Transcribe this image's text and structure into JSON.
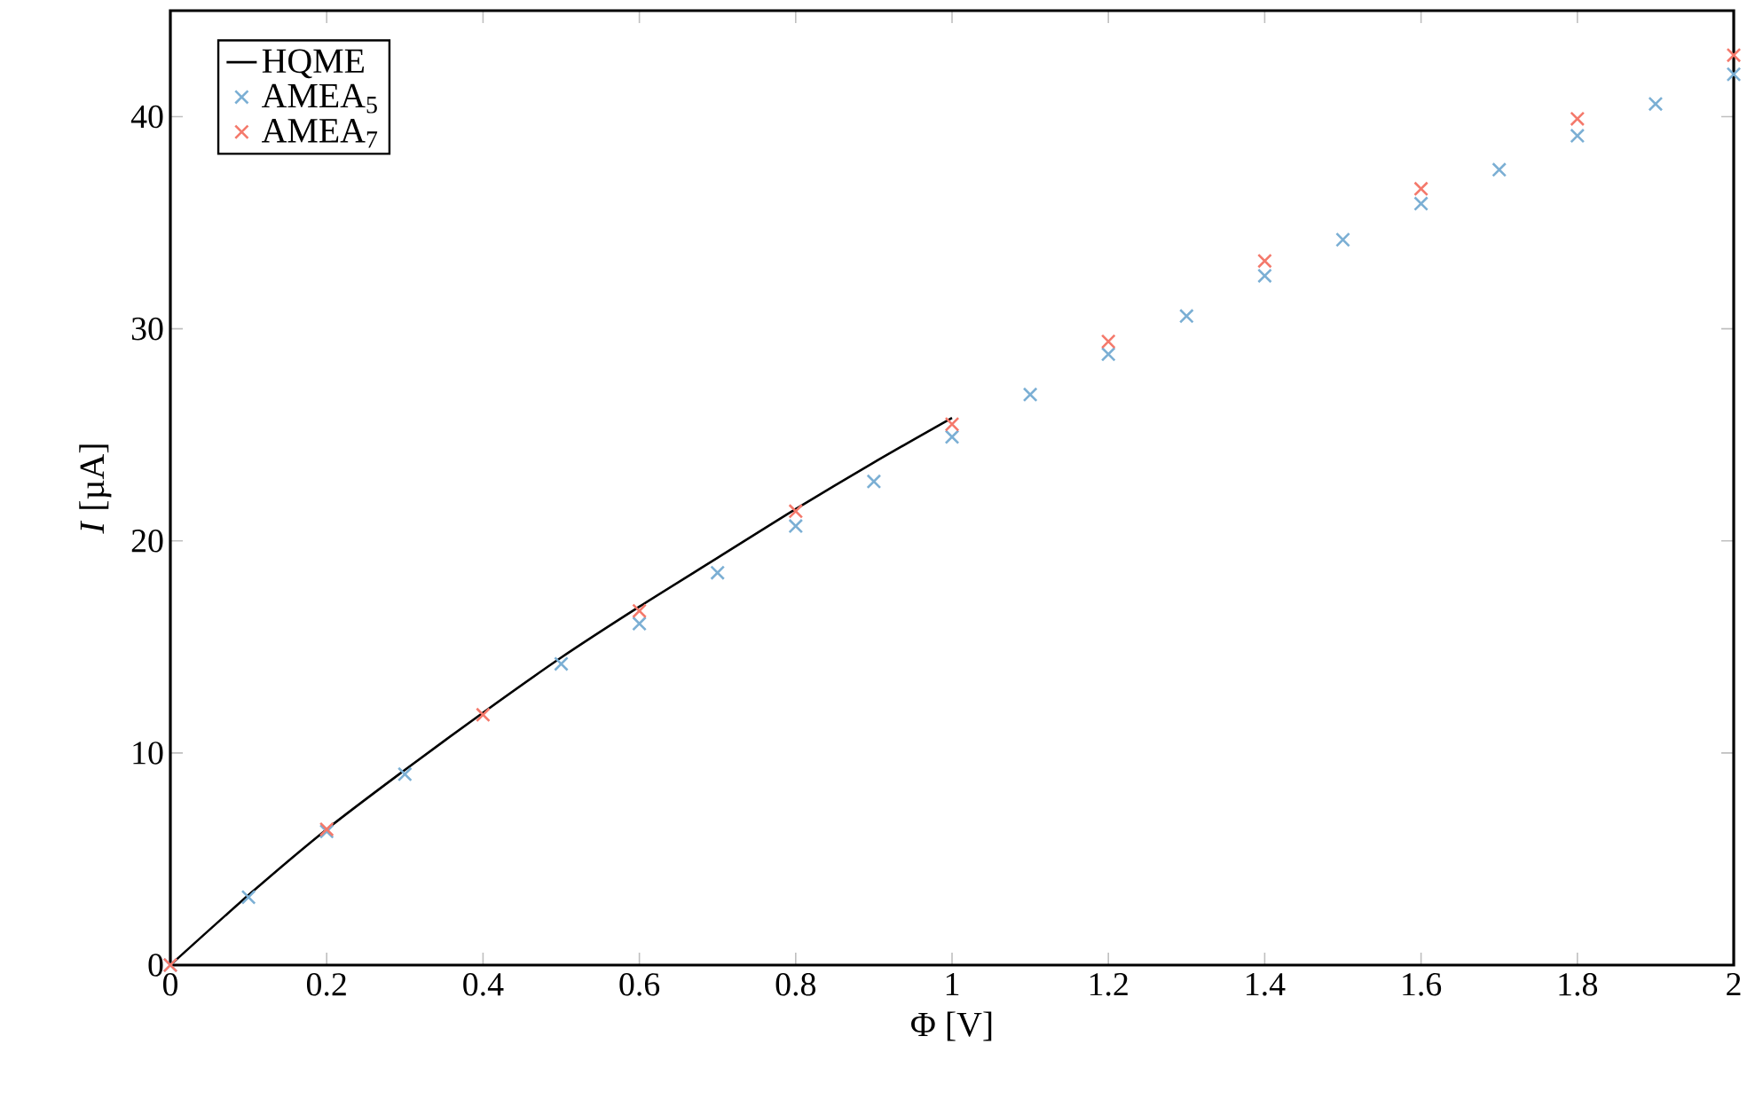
{
  "chart_data": {
    "type": "line",
    "xlabel": "Φ [V]",
    "ylabel": "*I* [µA]",
    "xlim": [
      0,
      2
    ],
    "ylim": [
      0,
      45
    ],
    "xticks": [
      0,
      0.2,
      0.4,
      0.6,
      0.8,
      1,
      1.2,
      1.4,
      1.6,
      1.8,
      2
    ],
    "yticks": [
      0,
      10,
      20,
      30,
      40
    ],
    "grid": false,
    "legend": "top left",
    "series": [
      {
        "name": "HQME",
        "color": "#000000",
        "line_style": "solid",
        "marker": "none",
        "x": [
          0,
          0.1,
          0.2,
          0.3,
          0.4,
          0.5,
          0.6,
          0.7,
          0.8,
          0.9,
          1.0
        ],
        "values": [
          0,
          3.3,
          6.4,
          9.2,
          11.9,
          14.5,
          16.9,
          19.2,
          21.5,
          23.7,
          25.8
        ]
      },
      {
        "name": "AMEA$_{5}$",
        "type": "scatter",
        "color": "#7bafd4",
        "marker": "cross",
        "x": [
          0,
          0.1,
          0.2,
          0.3,
          0.4,
          0.5,
          0.6,
          0.7,
          0.8,
          0.9,
          1.0,
          1.1,
          1.2,
          1.3,
          1.4,
          1.5,
          1.6,
          1.7,
          1.8,
          1.9,
          2.0
        ],
        "values": [
          0,
          3.2,
          6.3,
          9.0,
          null,
          14.2,
          16.1,
          18.5,
          20.7,
          22.8,
          24.9,
          26.9,
          28.8,
          30.6,
          32.5,
          34.2,
          35.9,
          37.5,
          39.1,
          40.6,
          42.0
        ]
      },
      {
        "name": "AMEA$_{7}$",
        "type": "scatter",
        "color": "#f4796b",
        "marker": "cross",
        "x": [
          0,
          0.2,
          0.4,
          0.6,
          0.8,
          1.0,
          1.2,
          1.4,
          1.6,
          1.8,
          2.0
        ],
        "values": [
          0,
          6.4,
          11.8,
          16.7,
          21.4,
          25.5,
          29.4,
          33.2,
          36.6,
          39.9,
          42.9
        ]
      }
    ]
  }
}
